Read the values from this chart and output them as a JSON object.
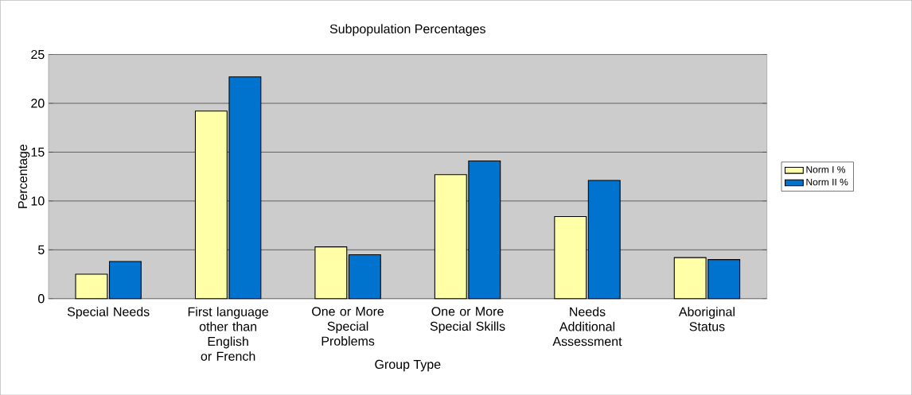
{
  "chart_data": {
    "type": "bar",
    "title": "Subpopulation Percentages",
    "xlabel": "Group Type",
    "ylabel": "Percentage",
    "categories": [
      "Special Needs",
      "First language other than English or French",
      "One or More Special Problems",
      "One or More Special Skills",
      "Needs Additional Assessment",
      "Aboriginal Status"
    ],
    "series": [
      {
        "name": "Norm I %",
        "color": "#ffffa8",
        "values": [
          2.5,
          19.2,
          5.3,
          12.7,
          8.4,
          4.2
        ]
      },
      {
        "name": "Norm II %",
        "color": "#0073cf",
        "values": [
          3.8,
          22.7,
          4.5,
          14.1,
          12.1,
          4.0
        ]
      }
    ],
    "ylim": [
      0,
      25
    ],
    "yticks": [
      0,
      5,
      10,
      15,
      20,
      25
    ],
    "grid": "y",
    "legend": "right"
  }
}
